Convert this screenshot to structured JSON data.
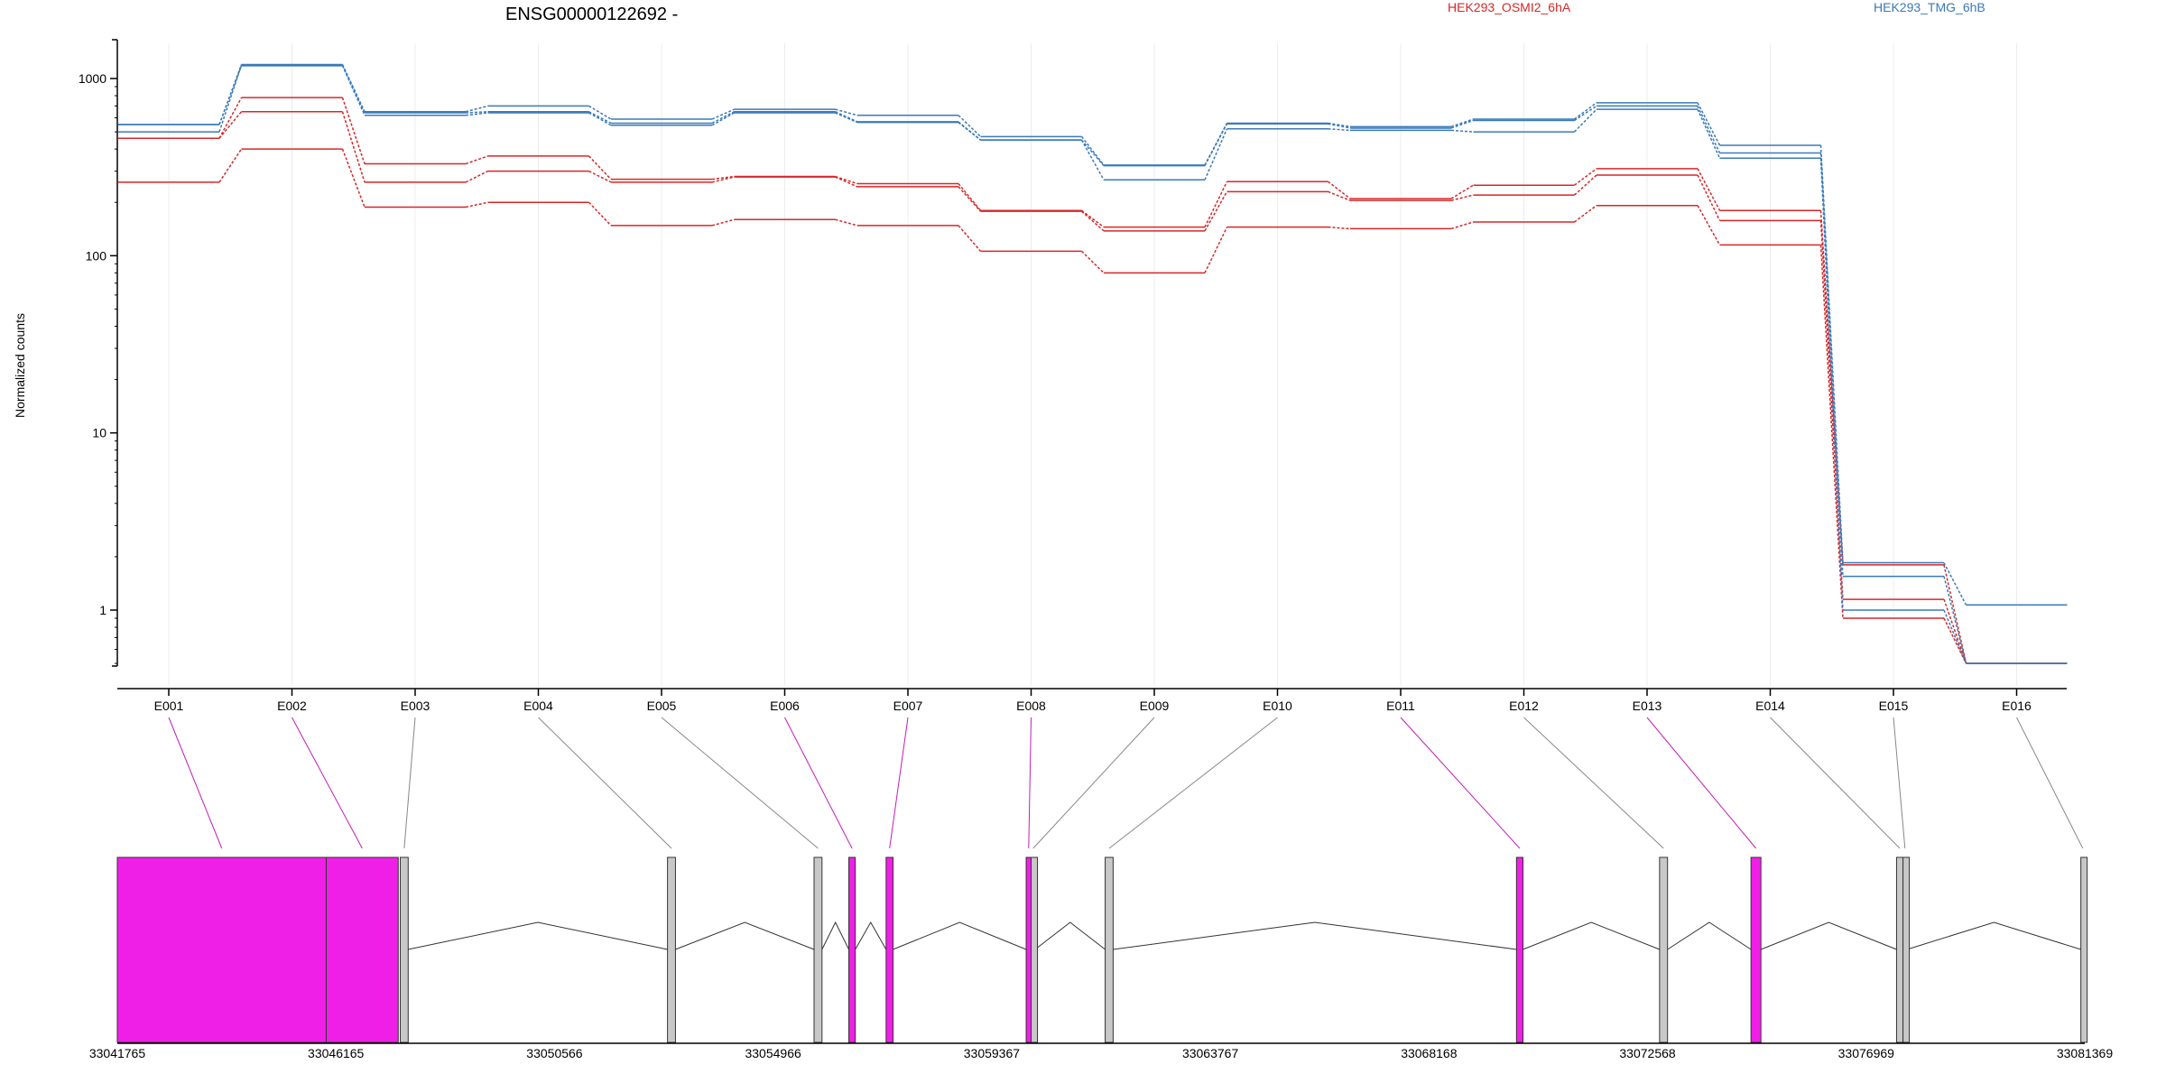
{
  "chart_data": {
    "type": "line",
    "title": "ENSG00000122692 -",
    "ylabel": "Normalized counts",
    "xlabel": "",
    "yscale": "log",
    "ylim": [
      0.5,
      1500
    ],
    "yticks": [
      "1",
      "10",
      "100",
      "1000"
    ],
    "ytick_values": [
      1,
      10,
      100,
      1000
    ],
    "grid": "vertical",
    "legend_position": "top-right",
    "categories": [
      "E001",
      "E002",
      "E003",
      "E004",
      "E005",
      "E006",
      "E007",
      "E008",
      "E009",
      "E010",
      "E011",
      "E012",
      "E013",
      "E014",
      "E015",
      "E016"
    ],
    "colors": {
      "HEK293_OSMI2_6hA": "#d62728",
      "HEK293_TMG_6hB": "#3a7ab8"
    },
    "series": [
      {
        "group": "HEK293_OSMI2_6hA",
        "values": [
          460,
          780,
          330,
          365,
          270,
          280,
          255,
          180,
          145,
          262,
          210,
          250,
          310,
          180,
          1.8,
          0.5
        ]
      },
      {
        "group": "HEK293_OSMI2_6hA",
        "values": [
          460,
          650,
          260,
          300,
          260,
          278,
          245,
          178,
          138,
          230,
          205,
          220,
          285,
          158,
          1.15,
          0.5
        ]
      },
      {
        "group": "HEK293_OSMI2_6hA",
        "values": [
          260,
          400,
          188,
          200,
          148,
          160,
          148,
          106,
          80,
          145,
          142,
          155,
          192,
          115,
          0.9,
          0.5
        ]
      },
      {
        "group": "HEK293_TMG_6hB",
        "values": [
          550,
          1200,
          650,
          700,
          590,
          670,
          620,
          470,
          325,
          560,
          535,
          590,
          730,
          420,
          1.85,
          1.07
        ]
      },
      {
        "group": "HEK293_TMG_6hB",
        "values": [
          500,
          1190,
          640,
          650,
          560,
          650,
          570,
          450,
          322,
          555,
          525,
          580,
          700,
          380,
          1.55,
          0.5
        ]
      },
      {
        "group": "HEK293_TMG_6hB",
        "values": [
          550,
          1180,
          620,
          640,
          545,
          640,
          565,
          450,
          268,
          520,
          510,
          500,
          670,
          355,
          1.0,
          0.5
        ]
      }
    ],
    "exon_colors": [
      "#f01fe7",
      "#f01fe7",
      "#c8c8c8",
      "#c8c8c8",
      "#c8c8c8",
      "#f01fe7",
      "#f01fe7",
      "#f01fe7",
      "#c8c8c8",
      "#c8c8c8",
      "#f01fe7",
      "#c8c8c8",
      "#f01fe7",
      "#c8c8c8",
      "#c8c8c8",
      "#c8c8c8"
    ],
    "genomic_axis": {
      "range": [
        33041765,
        33081369
      ],
      "ticks": [
        "33041765",
        "33046165",
        "33050566",
        "33054966",
        "33059367",
        "33063767",
        "33068168",
        "33072568",
        "33076969",
        "33081369"
      ],
      "tick_values": [
        33041765,
        33046165,
        33050566,
        33054966,
        33059367,
        33063767,
        33068168,
        33072568,
        33076969,
        33081369
      ]
    },
    "exons": [
      {
        "id": "E001",
        "start": 33041765,
        "end": 33045970
      },
      {
        "id": "E002",
        "start": 33045970,
        "end": 33047420
      },
      {
        "id": "E003",
        "start": 33047460,
        "end": 33047620
      },
      {
        "id": "E004",
        "start": 33052840,
        "end": 33053000
      },
      {
        "id": "E005",
        "start": 33055790,
        "end": 33055950
      },
      {
        "id": "E006",
        "start": 33056490,
        "end": 33056620
      },
      {
        "id": "E007",
        "start": 33057240,
        "end": 33057380
      },
      {
        "id": "E008",
        "start": 33060060,
        "end": 33060160
      },
      {
        "id": "E009",
        "start": 33060160,
        "end": 33060240
      },
      {
        "id": "E010",
        "start": 33061650,
        "end": 33061810
      },
      {
        "id": "E011",
        "start": 33069930,
        "end": 33070060
      },
      {
        "id": "E012",
        "start": 33072810,
        "end": 33072970
      },
      {
        "id": "E013",
        "start": 33074650,
        "end": 33074850
      },
      {
        "id": "E014",
        "start": 33077580,
        "end": 33077710
      },
      {
        "id": "E015",
        "start": 33077710,
        "end": 33077790
      },
      {
        "id": "E016",
        "start": 33081290,
        "end": 33081369
      }
    ],
    "introns": [
      [
        2,
        3
      ],
      [
        3,
        4
      ],
      [
        4,
        5
      ],
      [
        5,
        6
      ],
      [
        6,
        7
      ],
      [
        8,
        9
      ],
      [
        9,
        10
      ],
      [
        10,
        11
      ],
      [
        11,
        12
      ],
      [
        12,
        13
      ],
      [
        14,
        15
      ]
    ]
  }
}
